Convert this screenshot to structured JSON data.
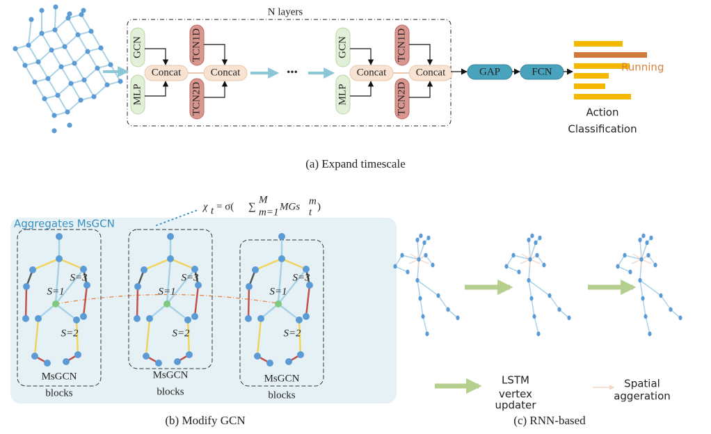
{
  "panel_a": {
    "layers_label": "N layers",
    "blocks": [
      {
        "gcn": "GCN",
        "mlp": "MLP",
        "concat_1": "Concat",
        "tcn_1d": "TCN1D",
        "tcn_2d": "TCN2D",
        "concat_2": "Concat"
      },
      {
        "gcn": "GCN",
        "mlp": "MLP",
        "concat_1": "Concat",
        "tcn_1d": "TCN1D",
        "tcn_2d": "TCN2D",
        "concat_2": "Concat"
      }
    ],
    "ellipsis": "•••",
    "gap": "GAP",
    "fcn": "FCN",
    "highlight_label": "Running",
    "output_label": [
      "Action",
      "Classification"
    ],
    "caption": "(a) Expand timescale"
  },
  "panel_b": {
    "formula": {
      "lhs": "χ",
      "lhs_sub": "t",
      "eq": " = σ(",
      "sum": "∑",
      "sum_sup": "M",
      "sum_sub": "m=1",
      "term": "MGs",
      "term_sup": "m",
      "term_sub": "t",
      "close": ")"
    },
    "group_label": "Aggregates MsGCN",
    "blocks": [
      {
        "scales": [
          "S=1",
          "S=3",
          "S=2"
        ],
        "label": [
          "MsGCN",
          "blocks"
        ]
      },
      {
        "scales": [
          "S=1",
          "S=3",
          "S=2"
        ],
        "label": [
          "MsGCN",
          "blocks"
        ]
      },
      {
        "scales": [
          "S=1",
          "S=3",
          "S=2"
        ],
        "label": [
          "MsGCN",
          "blocks"
        ]
      }
    ],
    "caption": "(b) Modify GCN"
  },
  "panel_c": {
    "legend": [
      {
        "label": [
          "LSTM",
          "vertex",
          "updater"
        ]
      },
      {
        "label": [
          "Spatial",
          "aggeration"
        ]
      }
    ],
    "caption": "(c) RNN-based"
  }
}
